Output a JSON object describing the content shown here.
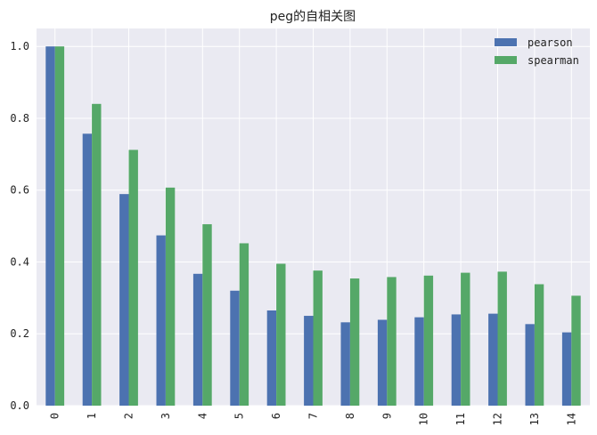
{
  "chart_data": {
    "type": "bar",
    "title": "peg的自相关图",
    "xlabel": "",
    "ylabel": "",
    "categories": [
      "0",
      "1",
      "2",
      "3",
      "4",
      "5",
      "6",
      "7",
      "8",
      "9",
      "10",
      "11",
      "12",
      "13",
      "14"
    ],
    "series": [
      {
        "name": "pearson",
        "color": "#4c72b0",
        "values": [
          1.0,
          0.757,
          0.589,
          0.474,
          0.367,
          0.32,
          0.265,
          0.25,
          0.232,
          0.239,
          0.246,
          0.254,
          0.256,
          0.227,
          0.204
        ]
      },
      {
        "name": "spearman",
        "color": "#55a868",
        "values": [
          1.0,
          0.84,
          0.712,
          0.607,
          0.505,
          0.452,
          0.395,
          0.376,
          0.354,
          0.358,
          0.362,
          0.37,
          0.373,
          0.338,
          0.306
        ]
      }
    ],
    "ylim": [
      0,
      1.05
    ],
    "yticks": [
      "0.0",
      "0.2",
      "0.4",
      "0.6",
      "0.8",
      "1.0"
    ],
    "grid": true,
    "legend_position": "top-right",
    "background": "#eaeaf2"
  }
}
